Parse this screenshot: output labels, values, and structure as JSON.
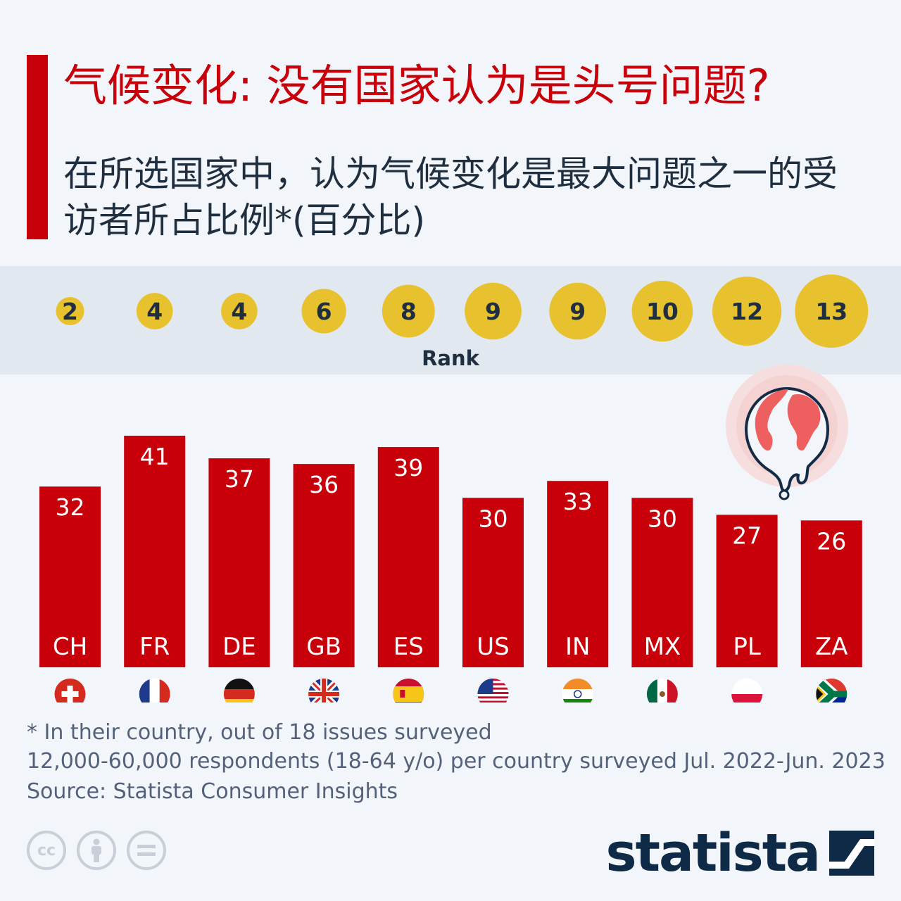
{
  "title": "气候变化: 没有国家认为是头号问题?",
  "subtitle": "在所选国家中，认为气候变化是最大问题之一的受访者所占比例*(百分比)",
  "rank_label": "Rank",
  "notes": {
    "footnote": "* In their country, out of 18 issues surveyed",
    "survey": "12,000-60,000 respondents (18-64 y/o) per country surveyed Jul. 2022-Jun. 2023",
    "source": "Source: Statista Consumer Insights"
  },
  "brand": "statista",
  "colors": {
    "bar": "#c8000a",
    "rank_circle": "#e8c12f",
    "text_dark": "#1f2f3f",
    "band": "#e2e8f0"
  },
  "icons": [
    "globe-melting-icon",
    "cc-icon",
    "attribution-icon",
    "noderivs-icon",
    "statista-logo-icon"
  ],
  "chart_data": {
    "type": "bar",
    "title": "在所选国家中，认为气候变化是最大问题之一的受访者所占比例*(百分比)",
    "categories": [
      "CH",
      "FR",
      "DE",
      "GB",
      "ES",
      "US",
      "IN",
      "MX",
      "PL",
      "ZA"
    ],
    "values": [
      32,
      41,
      37,
      36,
      39,
      30,
      33,
      30,
      27,
      26
    ],
    "ranks": [
      2,
      4,
      4,
      6,
      8,
      9,
      9,
      10,
      12,
      13
    ],
    "flags": [
      "flag-ch-icon",
      "flag-fr-icon",
      "flag-de-icon",
      "flag-gb-icon",
      "flag-es-icon",
      "flag-us-icon",
      "flag-in-icon",
      "flag-mx-icon",
      "flag-pl-icon",
      "flag-za-icon"
    ],
    "xlabel": "",
    "ylabel": "",
    "ylim": [
      0,
      41
    ]
  }
}
